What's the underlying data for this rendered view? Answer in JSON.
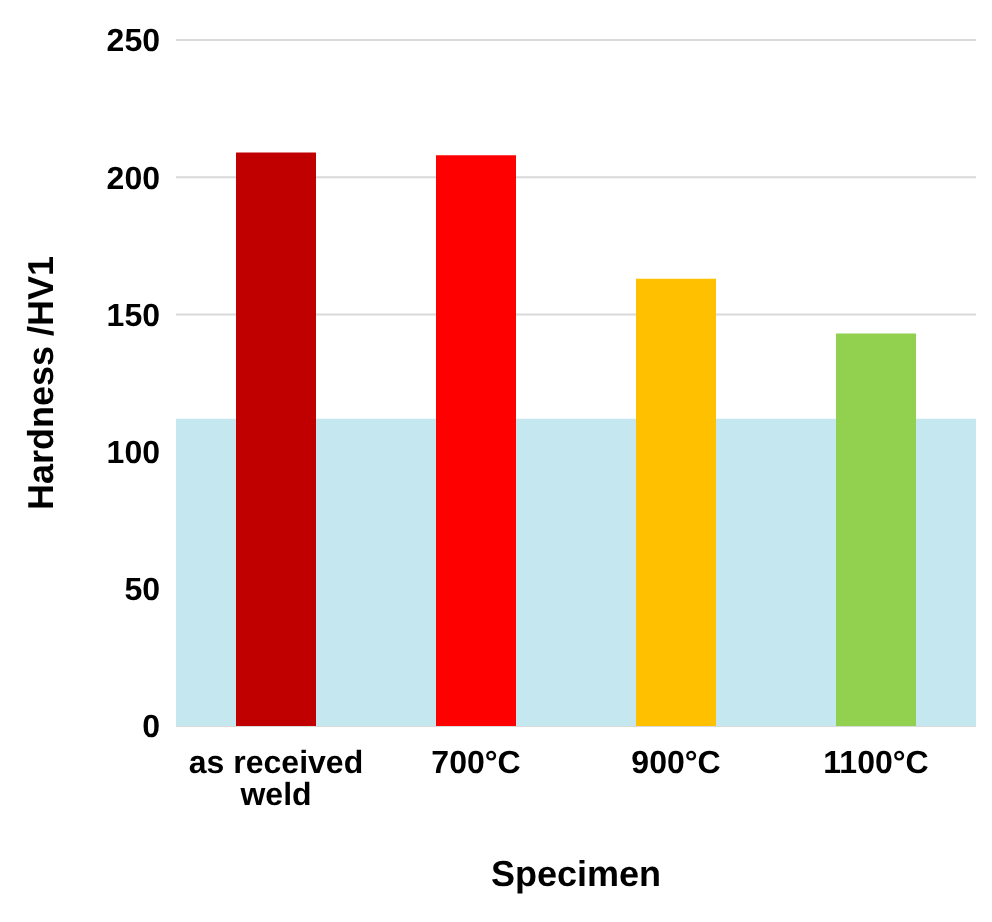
{
  "chart_data": {
    "type": "bar",
    "xlabel": "Specimen",
    "ylabel": "Hardness /HV1",
    "categories": [
      "as received weld",
      "700°C",
      "900°C",
      "1100°C"
    ],
    "values": [
      209,
      208,
      163,
      143
    ],
    "colors": [
      "#c00000",
      "#ff0000",
      "#ffc000",
      "#92d050"
    ],
    "ylim": [
      0,
      250
    ],
    "yticks": [
      0,
      50,
      100,
      150,
      200,
      250
    ],
    "grid": "y",
    "bands": [
      {
        "axis": "y",
        "from": 0,
        "to": 112,
        "color": "#c5e8f0"
      }
    ]
  }
}
